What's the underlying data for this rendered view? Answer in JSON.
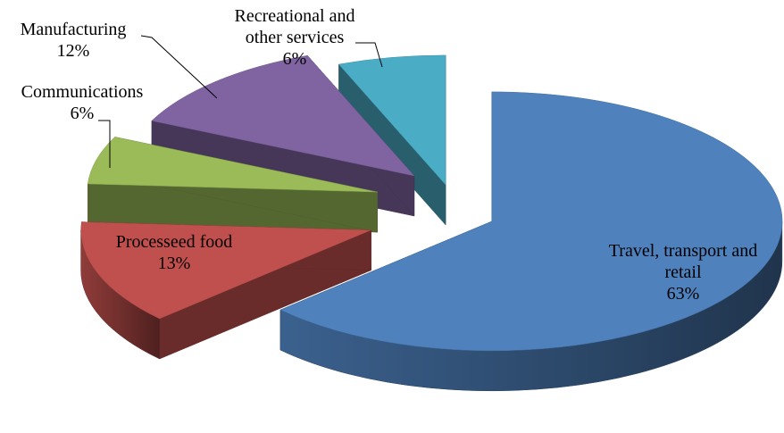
{
  "chart_data": {
    "type": "pie3d",
    "categories": [
      "Travel, transport and retail",
      "Processeed food",
      "Communications",
      "Manufacturing",
      "Recreational and other services"
    ],
    "values": [
      63,
      13,
      6,
      12,
      6
    ],
    "value_labels": [
      "63%",
      "13%",
      "6%",
      "12%",
      "6%"
    ],
    "colors": [
      "#4f81bd",
      "#c0504d",
      "#9bbb59",
      "#8064a2",
      "#4bacc6"
    ]
  }
}
